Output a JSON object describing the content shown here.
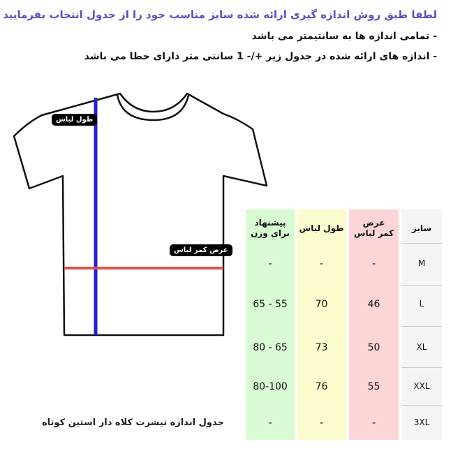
{
  "header": {
    "title": "لطفا طبق روش اندازه گیری ارائه شده سایز مناسب خود را از جدول انتخاب بفرمایید",
    "notes": [
      "- تمامی اندازه ها به سانتیمتر می باشد",
      "- اندازه های ارائه شده در جدول زیر +/- 1 سانتی متر دارای خطا می باشد"
    ]
  },
  "diagram": {
    "length_label": "طول لباس",
    "width_label": "عرض کمر لباس",
    "colors": {
      "length_line": "#2a1fc9",
      "width_line": "#e05050"
    }
  },
  "table": {
    "columns": [
      {
        "header": [
          "سایز"
        ],
        "color": "#f5f5f5",
        "values": [
          "M",
          "L",
          "XL",
          "XXL",
          "3XL"
        ]
      },
      {
        "header": [
          "عرض",
          "کمر لباس"
        ],
        "color": "#fcd6d6",
        "values": [
          "-",
          "46",
          "50",
          "55",
          "-"
        ]
      },
      {
        "header": [
          "طول لباس"
        ],
        "color": "#fdfccf",
        "values": [
          "-",
          "70",
          "73",
          "76",
          "-"
        ]
      },
      {
        "header": [
          "پیشنهاد",
          "برای وزن"
        ],
        "color": "#d9fbd3",
        "values": [
          "-",
          "55 - 65",
          "65 - 80",
          "80-100",
          "-"
        ]
      }
    ]
  },
  "caption": "جدول اندازه تیشرت کلاه دار استین کوتاه"
}
